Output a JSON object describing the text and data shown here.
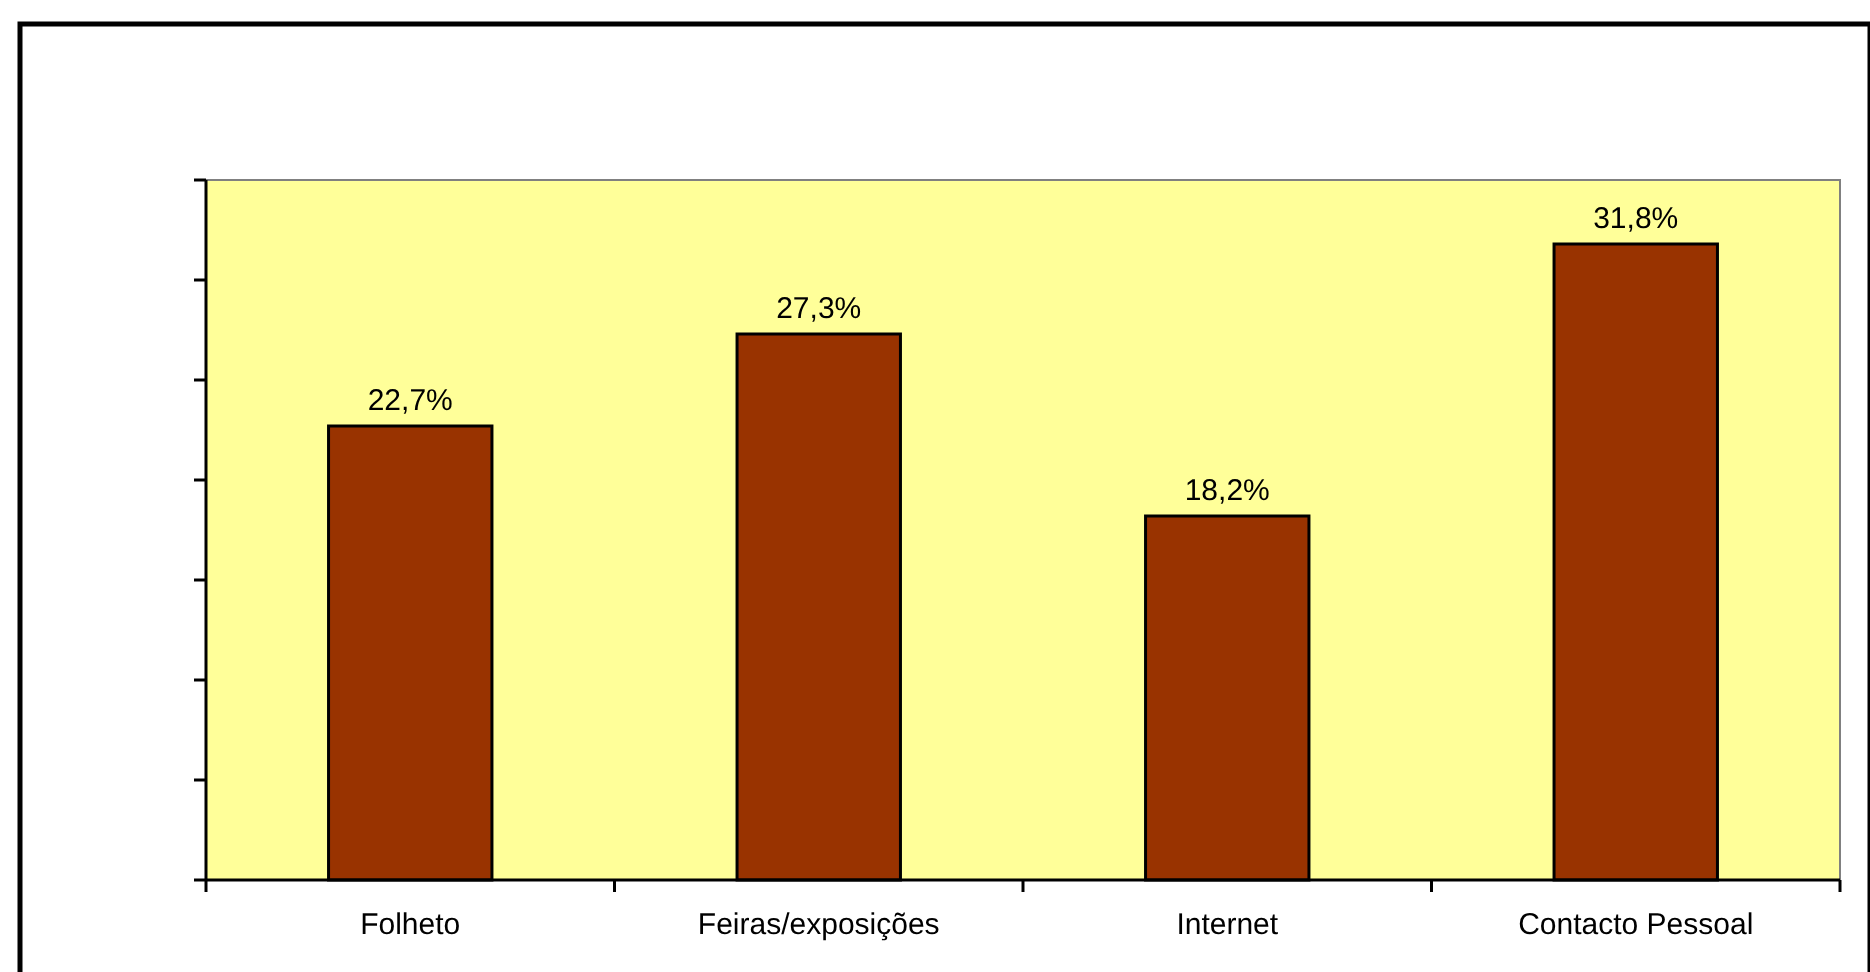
{
  "chart_data": {
    "type": "bar",
    "categories": [
      "Folheto",
      "Feiras/exposições",
      "Internet",
      "Contacto Pessoal"
    ],
    "values": [
      22.7,
      27.3,
      18.2,
      31.8
    ],
    "value_labels": [
      "22,7%",
      "27,3%",
      "18,2%",
      "31,8%"
    ],
    "color": "#993300",
    "ylim": [
      0,
      35
    ],
    "yticks": [
      {
        "value": 0,
        "label": null
      },
      {
        "value": 5,
        "label": null
      },
      {
        "value": 10,
        "label": null
      },
      {
        "value": 15,
        "label": null
      },
      {
        "value": 20,
        "label": null
      },
      {
        "value": 25,
        "label": null
      },
      {
        "value": 30,
        "label": null
      },
      {
        "value": 35,
        "label": null
      }
    ],
    "grid": false
  }
}
